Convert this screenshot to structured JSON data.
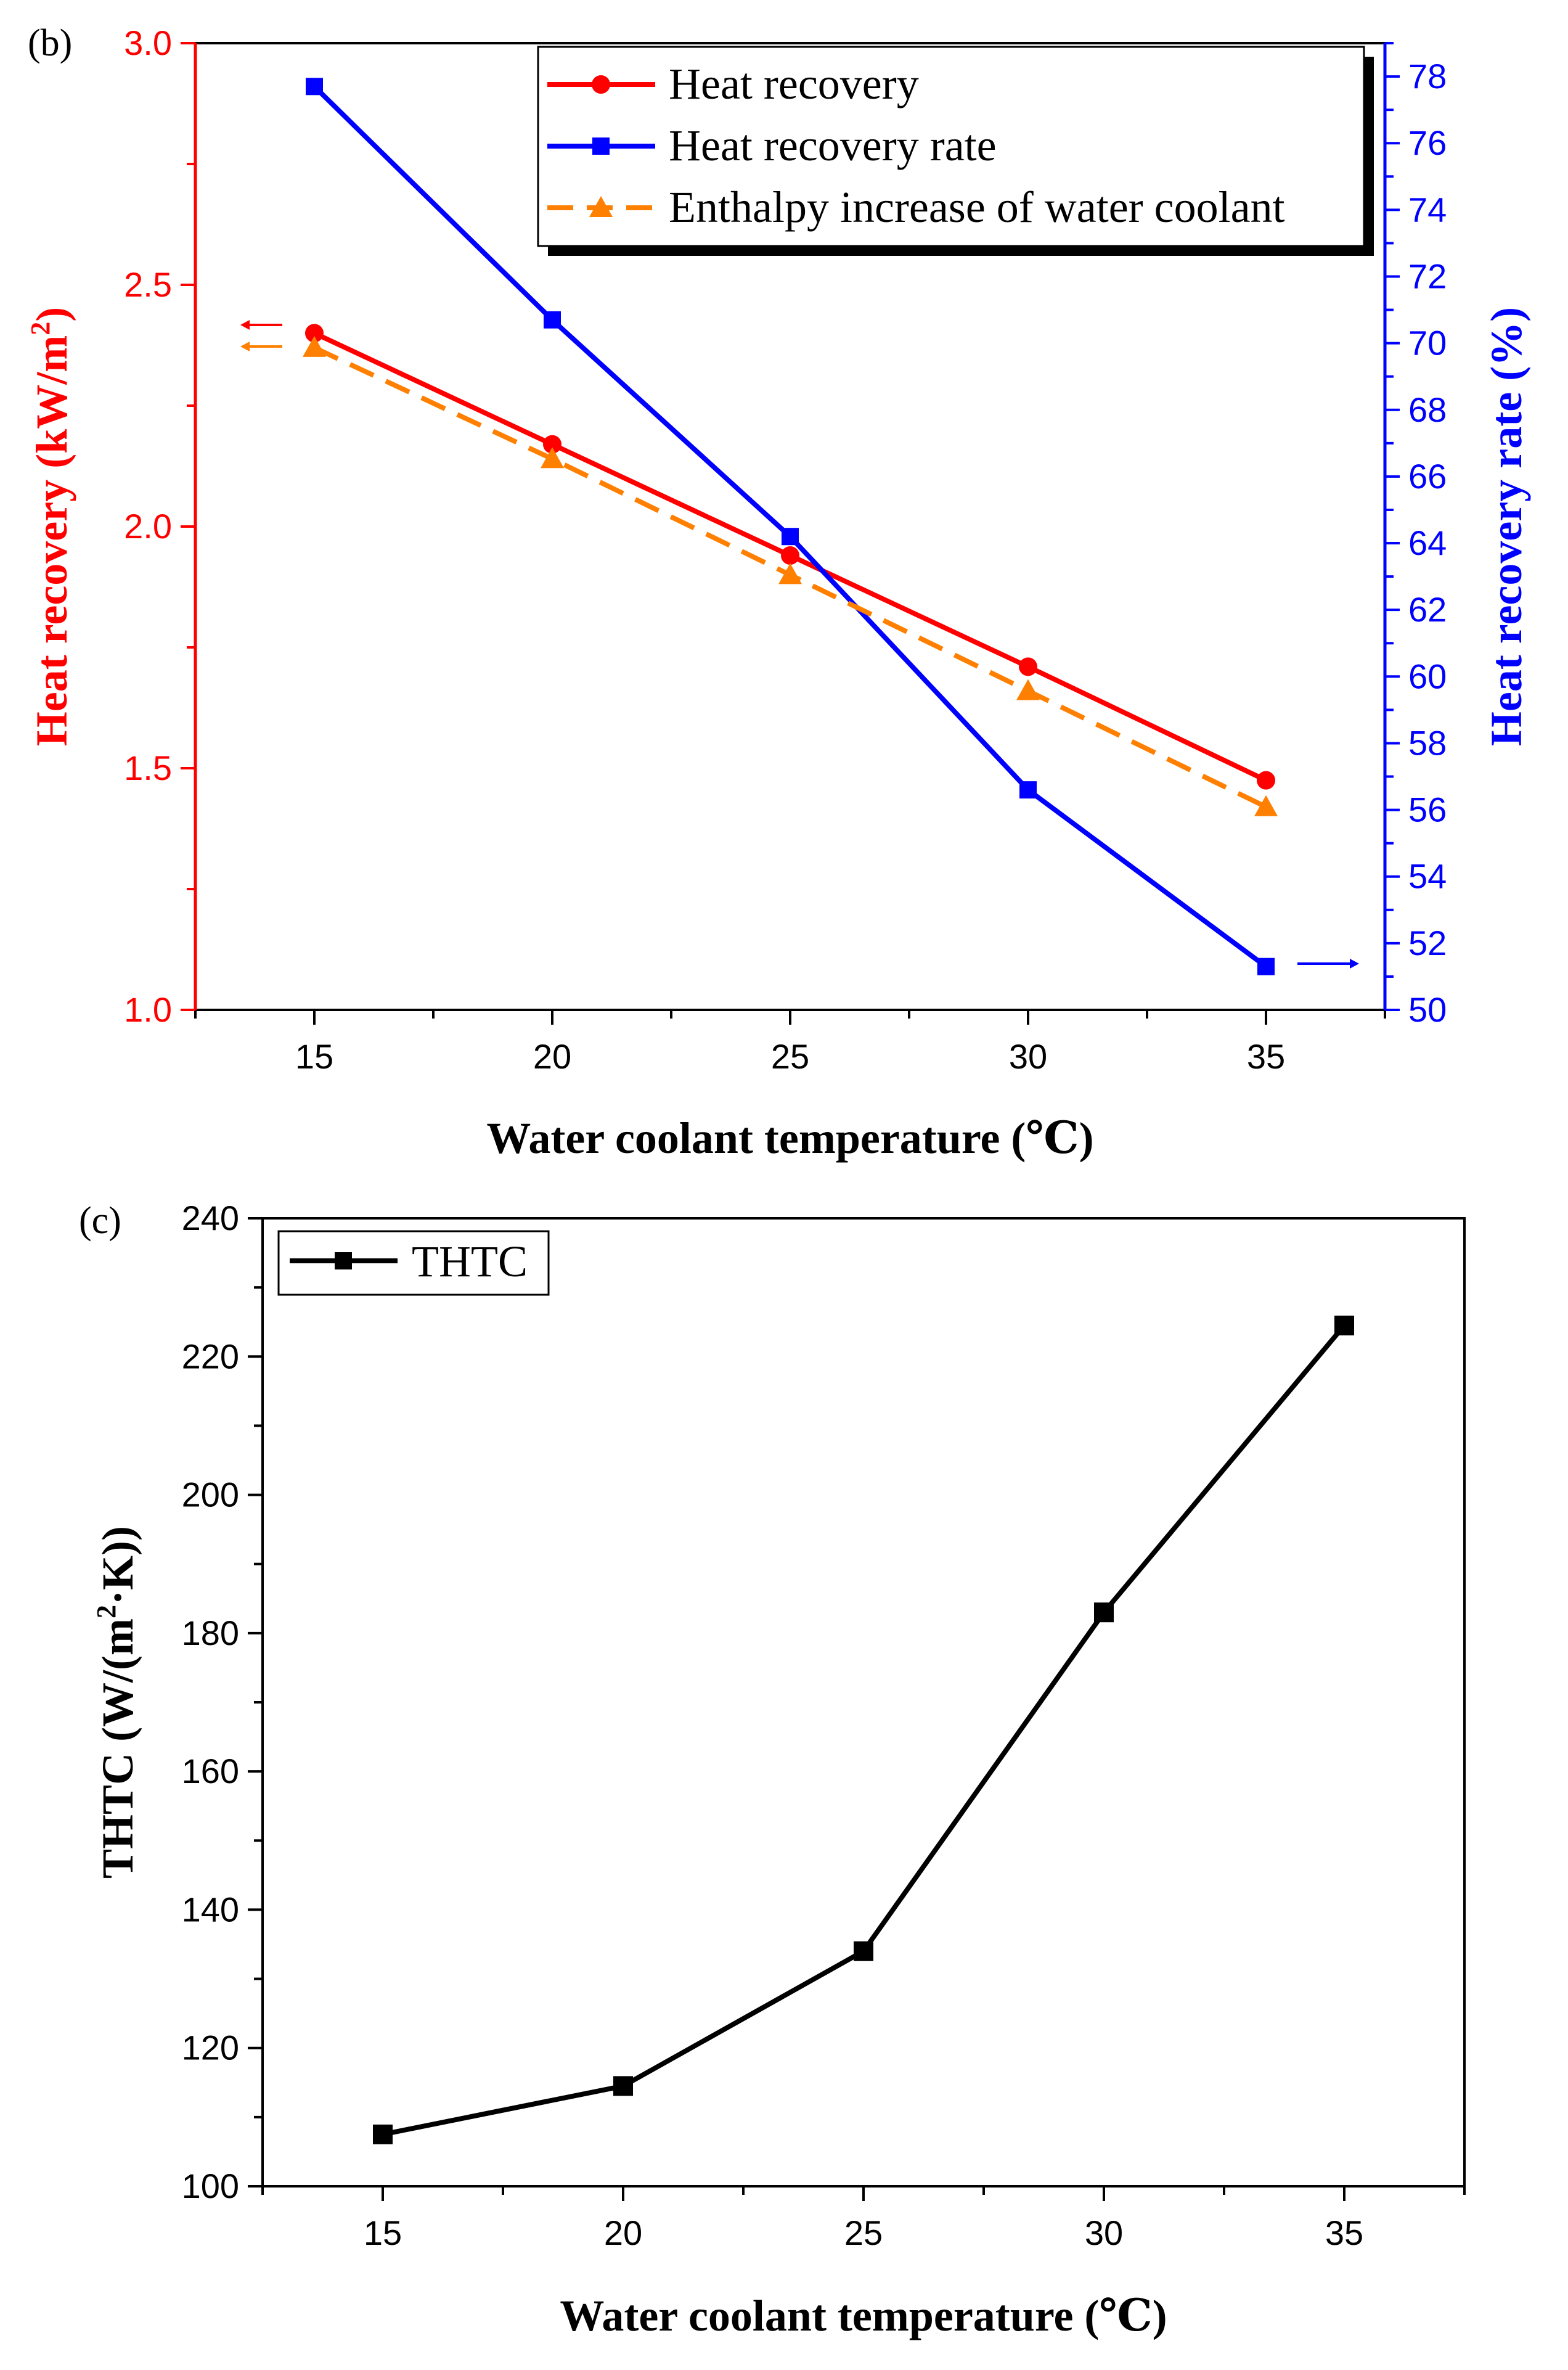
{
  "chart_data": [
    {
      "type": "line",
      "panel_label": "(b)",
      "xlabel": "Water coolant temperature (℃)",
      "ylabel": "Heat recovery (kW/m",
      "ylabel_sup": "2",
      "ylabel_close": ")",
      "y2label": "Heat recovery rate (%)",
      "x": [
        15,
        20,
        25,
        30,
        35
      ],
      "xlim": [
        12.5,
        37.5
      ],
      "xticks": [
        15,
        20,
        25,
        30,
        35
      ],
      "ylim": [
        1.0,
        3.0
      ],
      "yticks": [
        "1.0",
        "1.5",
        "2.0",
        "2.5",
        "3.0"
      ],
      "y2lim": [
        50,
        79
      ],
      "y2ticks": [
        "50",
        "52",
        "54",
        "56",
        "58",
        "60",
        "62",
        "64",
        "66",
        "68",
        "70",
        "72",
        "74",
        "76",
        "78"
      ],
      "series": [
        {
          "name": "Heat recovery",
          "axis": "left",
          "values": [
            2.4,
            2.17,
            1.94,
            1.71,
            1.475
          ],
          "color": "#ff0000",
          "marker": "circle",
          "dash": false
        },
        {
          "name": "Heat recovery rate",
          "axis": "right",
          "values": [
            77.7,
            70.7,
            64.2,
            56.6,
            51.3
          ],
          "color": "#0000ff",
          "marker": "square",
          "dash": false
        },
        {
          "name": "Enthalpy increase of water coolant",
          "axis": "left",
          "values": [
            2.37,
            2.14,
            1.9,
            1.66,
            1.42
          ],
          "color": "#ff8000",
          "marker": "triangle",
          "dash": true
        }
      ],
      "legend": "top-right",
      "colors": {
        "left_axis": "#ff0000",
        "right_axis": "#0000ff",
        "frame": "#000000"
      }
    },
    {
      "type": "line",
      "panel_label": "(c)",
      "xlabel": "Water coolant temperature (℃)",
      "ylabel": "THTC (W/(m",
      "ylabel_sup": "2",
      "ylabel_close": "·K))",
      "x": [
        15,
        20,
        25,
        30,
        35
      ],
      "xlim": [
        12.5,
        37.5
      ],
      "xticks": [
        15,
        20,
        25,
        30,
        35
      ],
      "ylim": [
        100,
        240
      ],
      "yticks": [
        "100",
        "120",
        "140",
        "160",
        "180",
        "200",
        "220",
        "240"
      ],
      "series": [
        {
          "name": "THTC",
          "axis": "left",
          "values": [
            107.5,
            114.5,
            134,
            183,
            224.5
          ],
          "color": "#000000",
          "marker": "square",
          "dash": false
        }
      ],
      "legend": "top-left"
    }
  ]
}
